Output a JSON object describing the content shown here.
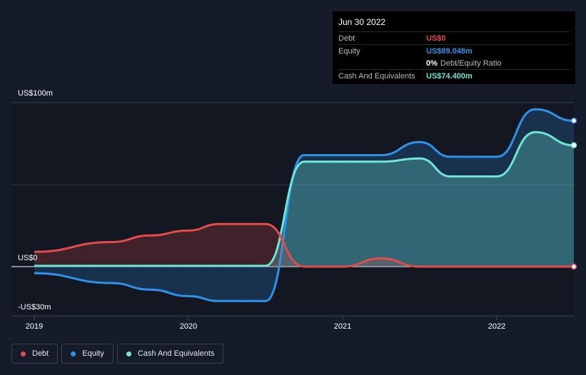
{
  "tooltip": {
    "date": "Jun 30 2022",
    "rows": [
      {
        "label": "Debt",
        "value": "US$0",
        "color": "#e24c4b"
      },
      {
        "label": "Equity",
        "value": "US$89.048m",
        "color": "#2f92e8"
      },
      {
        "label": "",
        "value": "0%",
        "sub": "Debt/Equity Ratio",
        "color": "#ffffff"
      },
      {
        "label": "Cash And Equivalents",
        "value": "US$74.400m",
        "color": "#6ee6d3"
      }
    ]
  },
  "legend": [
    {
      "label": "Debt",
      "color": "#e24c4b"
    },
    {
      "label": "Equity",
      "color": "#2f92e8"
    },
    {
      "label": "Cash And Equivalents",
      "color": "#6ee6d3"
    }
  ],
  "chart_data": {
    "type": "area",
    "title": "",
    "ylim": [
      -30,
      100
    ],
    "y_tick_labels": [
      "US$100m",
      "US$0",
      "-US$30m"
    ],
    "x_tick_labels": [
      "2019",
      "2020",
      "2021",
      "2022"
    ],
    "xlim": [
      2019.0,
      2022.5
    ],
    "series": [
      {
        "name": "Debt",
        "color": "#e24c4b",
        "x": [
          2019.0,
          2019.5,
          2019.75,
          2020.0,
          2020.2,
          2020.5,
          2020.75,
          2021.0,
          2021.25,
          2021.5,
          2021.75,
          2022.0,
          2022.25,
          2022.5
        ],
        "values": [
          9,
          15,
          19,
          22,
          26,
          26,
          0,
          0,
          5,
          0,
          0,
          0,
          0,
          0
        ]
      },
      {
        "name": "Equity",
        "color": "#2f92e8",
        "x": [
          2019.0,
          2019.5,
          2019.75,
          2020.0,
          2020.2,
          2020.5,
          2020.75,
          2021.0,
          2021.25,
          2021.5,
          2021.7,
          2022.0,
          2022.25,
          2022.5
        ],
        "values": [
          -4,
          -10,
          -14,
          -18,
          -21,
          -21,
          68,
          68,
          68,
          76,
          67,
          67,
          96,
          89
        ]
      },
      {
        "name": "Cash And Equivalents",
        "color": "#6ee6d3",
        "x": [
          2019.0,
          2019.5,
          2019.75,
          2020.0,
          2020.2,
          2020.5,
          2020.75,
          2021.0,
          2021.25,
          2021.5,
          2021.7,
          2022.0,
          2022.25,
          2022.5
        ],
        "values": [
          0.5,
          0.5,
          0.5,
          0.5,
          0.5,
          0.5,
          64,
          64,
          64,
          66,
          55,
          55,
          82,
          74
        ]
      }
    ],
    "end_value_date": "Jun 30 2022"
  }
}
